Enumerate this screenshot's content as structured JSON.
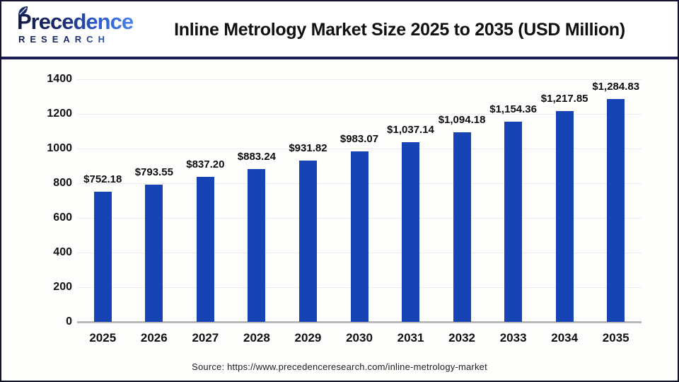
{
  "header": {
    "logo": {
      "line1": "Precedence",
      "line2": "RESEARCH"
    },
    "title": "Inline Metrology Market Size 2025 to 2035 (USD Million)"
  },
  "chart_data": {
    "type": "bar",
    "title": "Inline Metrology Market Size 2025 to 2035 (USD Million)",
    "categories": [
      "2025",
      "2026",
      "2027",
      "2028",
      "2029",
      "2030",
      "2031",
      "2032",
      "2033",
      "2034",
      "2035"
    ],
    "values": [
      752.18,
      793.55,
      837.2,
      883.24,
      931.82,
      983.07,
      1037.14,
      1094.18,
      1154.36,
      1217.85,
      1284.83
    ],
    "value_labels": [
      "$752.18",
      "$793.55",
      "$837.20",
      "$883.24",
      "$931.82",
      "$983.07",
      "$1,037.14",
      "$1,094.18",
      "$1,154.36",
      "$1,217.85",
      "$1,284.83"
    ],
    "xlabel": "",
    "ylabel": "",
    "ylim": [
      0,
      1400
    ],
    "yticks": [
      0,
      200,
      400,
      600,
      800,
      1000,
      1200,
      1400
    ],
    "grid": true,
    "legend": "none",
    "bar_color": "#1843b5"
  },
  "footer": {
    "source": "Source: https://www.precedenceresearch.com/inline-metrology-market"
  },
  "colors": {
    "bar": "#1843b5",
    "navy_separator": "#191d52",
    "gridline": "#ebebeb",
    "baseline": "#b8b8b8",
    "logo_dark": "#1b2a6b",
    "logo_light": "#4a83ea"
  }
}
